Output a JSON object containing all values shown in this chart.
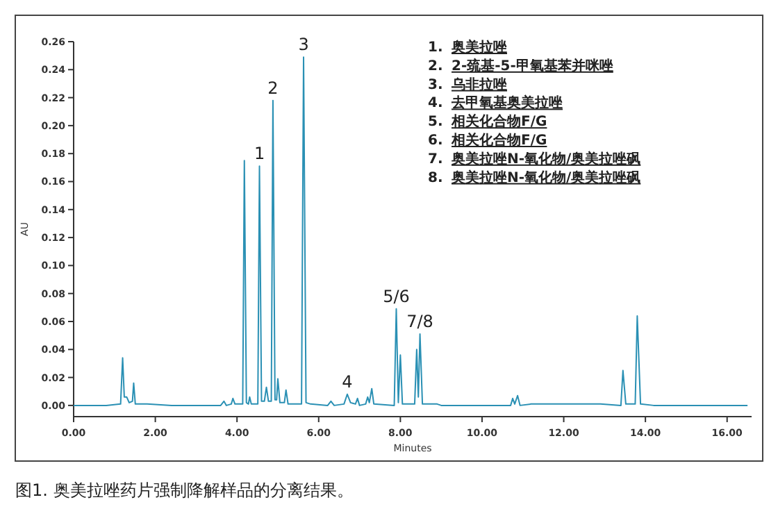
{
  "chart_data": {
    "type": "line",
    "title": "图1. 奥美拉唑药片强制降解样品的分离结果。",
    "xlabel": "Minutes",
    "ylabel": "AU",
    "xlim": [
      0,
      16.6
    ],
    "ylim": [
      -0.008,
      0.26
    ],
    "xticks": [
      {
        "value": 0,
        "label": "0.00"
      },
      {
        "value": 2,
        "label": "2.00"
      },
      {
        "value": 4,
        "label": "4.00"
      },
      {
        "value": 6,
        "label": "6.00"
      },
      {
        "value": 8,
        "label": "8.00"
      },
      {
        "value": 10,
        "label": "10.00"
      },
      {
        "value": 12,
        "label": "12.00"
      },
      {
        "value": 14,
        "label": "14.00"
      },
      {
        "value": 16,
        "label": "16.00"
      }
    ],
    "yticks": [
      {
        "value": 0,
        "label": "0.00"
      },
      {
        "value": 0.02,
        "label": "0.02"
      },
      {
        "value": 0.04,
        "label": "0.04"
      },
      {
        "value": 0.06,
        "label": "0.06"
      },
      {
        "value": 0.08,
        "label": "0.08"
      },
      {
        "value": 0.1,
        "label": "0.10"
      },
      {
        "value": 0.12,
        "label": "0.12"
      },
      {
        "value": 0.14,
        "label": "0.14"
      },
      {
        "value": 0.16,
        "label": "0.16"
      },
      {
        "value": 0.18,
        "label": "0.18"
      },
      {
        "value": 0.2,
        "label": "0.20"
      },
      {
        "value": 0.22,
        "label": "0.22"
      },
      {
        "value": 0.24,
        "label": "0.24"
      },
      {
        "value": 0.26,
        "label": "0.26"
      }
    ],
    "grid": false,
    "series": [
      {
        "color": "#2a90b4",
        "x": [
          0,
          0.8,
          1.15,
          1.2,
          1.24,
          1.3,
          1.36,
          1.44,
          1.47,
          1.51,
          1.8,
          2.4,
          3.6,
          3.68,
          3.74,
          3.86,
          3.9,
          3.95,
          4.14,
          4.18,
          4.23,
          4.28,
          4.31,
          4.35,
          4.51,
          4.55,
          4.6,
          4.67,
          4.72,
          4.77,
          4.84,
          4.88,
          4.93,
          4.97,
          5.0,
          5.05,
          5.16,
          5.2,
          5.25,
          5.58,
          5.63,
          5.69,
          5.8,
          6.22,
          6.3,
          6.38,
          6.62,
          6.7,
          6.78,
          6.9,
          6.95,
          7.0,
          7.15,
          7.2,
          7.24,
          7.3,
          7.35,
          7.85,
          7.9,
          7.95,
          8.0,
          8.05,
          8.35,
          8.4,
          8.44,
          8.48,
          8.54,
          8.9,
          9.0,
          10.7,
          10.75,
          10.8,
          10.87,
          10.93,
          11.2,
          12.6,
          12.9,
          13.4,
          13.45,
          13.52,
          13.75,
          13.8,
          13.88,
          14.2,
          16.5
        ],
        "values": [
          0,
          0,
          0.001,
          0.034,
          0.006,
          0.006,
          0.002,
          0.003,
          0.016,
          0.001,
          0.001,
          0,
          0,
          0.003,
          0,
          0.001,
          0.005,
          0.001,
          0.001,
          0.175,
          0.002,
          0.001,
          0.006,
          0.001,
          0.001,
          0.171,
          0.003,
          0.003,
          0.013,
          0.003,
          0.003,
          0.218,
          0.004,
          0.004,
          0.019,
          0.002,
          0.002,
          0.011,
          0.001,
          0.001,
          0.249,
          0.002,
          0.001,
          0,
          0.003,
          0,
          0.001,
          0.008,
          0.002,
          0.001,
          0.005,
          0,
          0.001,
          0.006,
          0.002,
          0.012,
          0.001,
          0,
          0.069,
          0.002,
          0.036,
          0.001,
          0.001,
          0.04,
          0.006,
          0.051,
          0.001,
          0.001,
          0,
          0,
          0.005,
          0.001,
          0.007,
          0,
          0.001,
          0.001,
          0.001,
          0,
          0.025,
          0.001,
          0.001,
          0.064,
          0.001,
          0,
          0
        ]
      }
    ],
    "annotations": [
      {
        "text": "1",
        "x": 4.55,
        "y": 0.171
      },
      {
        "text": "2",
        "x": 4.88,
        "y": 0.218
      },
      {
        "text": "3",
        "x": 5.63,
        "y": 0.249
      },
      {
        "text": "4",
        "x": 6.7,
        "y": 0.008
      },
      {
        "text": "5/6",
        "x": 7.9,
        "y": 0.069
      },
      {
        "text": "7/8",
        "x": 8.48,
        "y": 0.051
      },
      "1. 奥美拉唑",
      "2. 2-巯基-5-甲氧基苯并咪唑",
      "3. 乌非拉唑",
      "4. 去甲氧基奥美拉唑",
      "5. 相关化合物F/G",
      "6. 相关化合物F/G",
      "7. 奥美拉唑N-氧化物/奥美拉唑砜",
      "8. 奥美拉唑N-氧化物/奥美拉唑砜"
    ]
  }
}
